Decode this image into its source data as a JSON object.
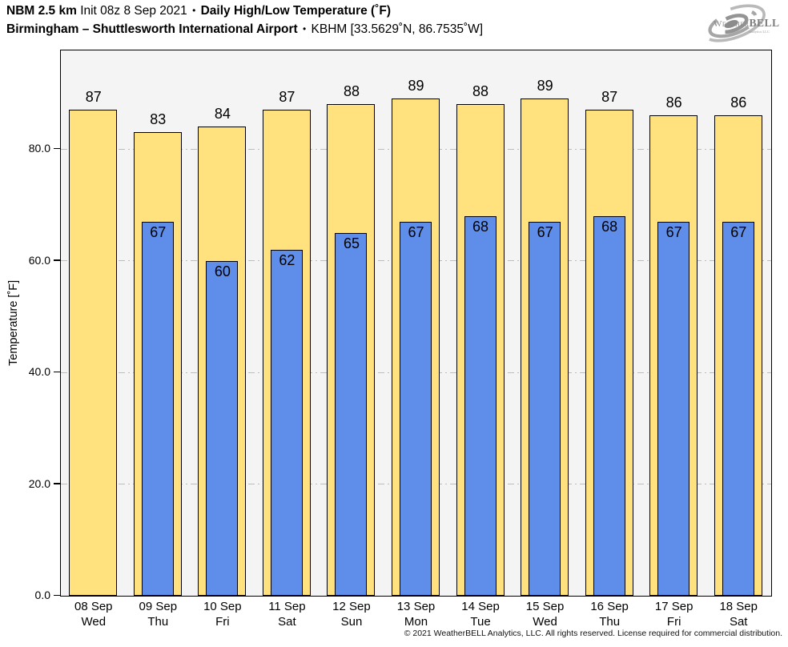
{
  "header": {
    "model": "NBM 2.5 km",
    "init": "Init 08z 8 Sep 2021",
    "separator": "•",
    "metric": "Daily High/Low Temperature (˚F)",
    "station": "Birmingham – Shuttlesworth International Airport",
    "station_id": "KBHM [33.5629˚N, 86.7535˚W]"
  },
  "logo": {
    "weather": "Weather",
    "bell": "BELL",
    "analytics": "Analytics LLC"
  },
  "chart_data": {
    "type": "bar",
    "title": "Daily High/Low Temperature (˚F)",
    "xlabel": "",
    "ylabel": "Temperature [˚F]",
    "ylim": [
      0,
      97.5
    ],
    "yticks": [
      0,
      20,
      40,
      60,
      80
    ],
    "ytick_labels": [
      "0.0",
      "20.0",
      "40.0",
      "60.0",
      "80.0"
    ],
    "grid": "horizontal dash-dot gridlines at 20, 40, 60, 80",
    "legend_position": "none",
    "bar_labels": "high value above bar, low value inside top of blue bar",
    "categories": [
      {
        "date": "08 Sep",
        "day": "Wed"
      },
      {
        "date": "09 Sep",
        "day": "Thu"
      },
      {
        "date": "10 Sep",
        "day": "Fri"
      },
      {
        "date": "11 Sep",
        "day": "Sat"
      },
      {
        "date": "12 Sep",
        "day": "Sun"
      },
      {
        "date": "13 Sep",
        "day": "Mon"
      },
      {
        "date": "14 Sep",
        "day": "Tue"
      },
      {
        "date": "15 Sep",
        "day": "Wed"
      },
      {
        "date": "16 Sep",
        "day": "Thu"
      },
      {
        "date": "17 Sep",
        "day": "Fri"
      },
      {
        "date": "18 Sep",
        "day": "Sat"
      }
    ],
    "series": [
      {
        "name": "Daily High",
        "color": "#FFE27D",
        "values": [
          87,
          83,
          84,
          87,
          88,
          89,
          88,
          89,
          87,
          86,
          86
        ]
      },
      {
        "name": "Daily Low",
        "color": "#5E8EE9",
        "values": [
          null,
          67,
          60,
          62,
          65,
          67,
          68,
          67,
          68,
          67,
          67
        ]
      }
    ]
  },
  "footer": {
    "copyright": "© 2021 WeatherBELL Analytics, LLC. All rights reserved. License required for commercial distribution."
  },
  "colors": {
    "high_bar": "#FFE27D",
    "low_bar": "#5E8EE9",
    "bar_outline": "#000000",
    "plot_background": "#F4F4F4",
    "gridline": "#BDBDBD",
    "text": "#000000",
    "logo_gray": "#9A9A9A"
  }
}
